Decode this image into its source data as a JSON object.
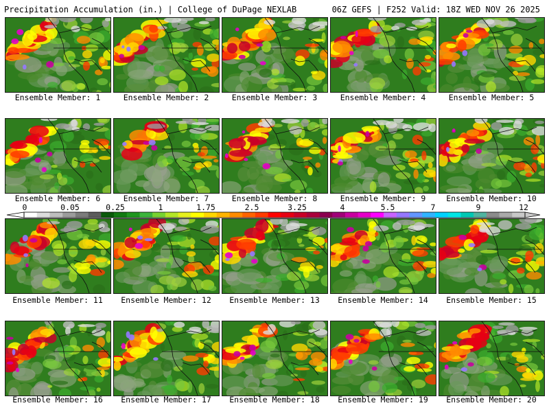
{
  "header": {
    "title": "Precipitation Accumulation (in.) | College of DuPage NEXLAB",
    "run_info": "06Z GEFS | F252 Valid: 18Z WED NOV 26 2025"
  },
  "members": [
    {
      "label": "Ensemble Member: 1"
    },
    {
      "label": "Ensemble Member: 2"
    },
    {
      "label": "Ensemble Member: 3"
    },
    {
      "label": "Ensemble Member: 4"
    },
    {
      "label": "Ensemble Member: 5"
    },
    {
      "label": "Ensemble Member: 6"
    },
    {
      "label": "Ensemble Member: 7"
    },
    {
      "label": "Ensemble Member: 8"
    },
    {
      "label": "Ensemble Member: 9"
    },
    {
      "label": "Ensemble Member: 10"
    },
    {
      "label": "Ensemble Member: 11"
    },
    {
      "label": "Ensemble Member: 12"
    },
    {
      "label": "Ensemble Member: 13"
    },
    {
      "label": "Ensemble Member: 14"
    },
    {
      "label": "Ensemble Member: 15"
    },
    {
      "label": "Ensemble Member: 16"
    },
    {
      "label": "Ensemble Member: 17"
    },
    {
      "label": "Ensemble Member: 18"
    },
    {
      "label": "Ensemble Member: 19"
    },
    {
      "label": "Ensemble Member: 20"
    }
  ],
  "colorbar": {
    "tick_labels": [
      "0",
      "0.05",
      "0.25",
      "1",
      "1.75",
      "2.5",
      "3.25",
      "4",
      "5.5",
      "7",
      "9",
      "12"
    ],
    "colors": [
      "#ffffff",
      "#dcdcdc",
      "#bebebe",
      "#9c9c9c",
      "#7c7c7c",
      "#5c5c5c",
      "#0a5a0a",
      "#127a12",
      "#1f961f",
      "#3cb43c",
      "#78d232",
      "#b4e628",
      "#e6f01e",
      "#ffff00",
      "#ffd700",
      "#ffb400",
      "#ff8c00",
      "#ff6400",
      "#ff3c00",
      "#ff0000",
      "#e60014",
      "#c80028",
      "#aa003c",
      "#8c0050",
      "#a00078",
      "#c800a0",
      "#e600c8",
      "#ff00ff",
      "#c864ff",
      "#9678ff",
      "#6496ff",
      "#32b4ff",
      "#00d2ff",
      "#00e6e6",
      "#00c8b4",
      "#50b4a0",
      "#8c8c8c",
      "#aaaaaa",
      "#c8c8c8"
    ]
  }
}
